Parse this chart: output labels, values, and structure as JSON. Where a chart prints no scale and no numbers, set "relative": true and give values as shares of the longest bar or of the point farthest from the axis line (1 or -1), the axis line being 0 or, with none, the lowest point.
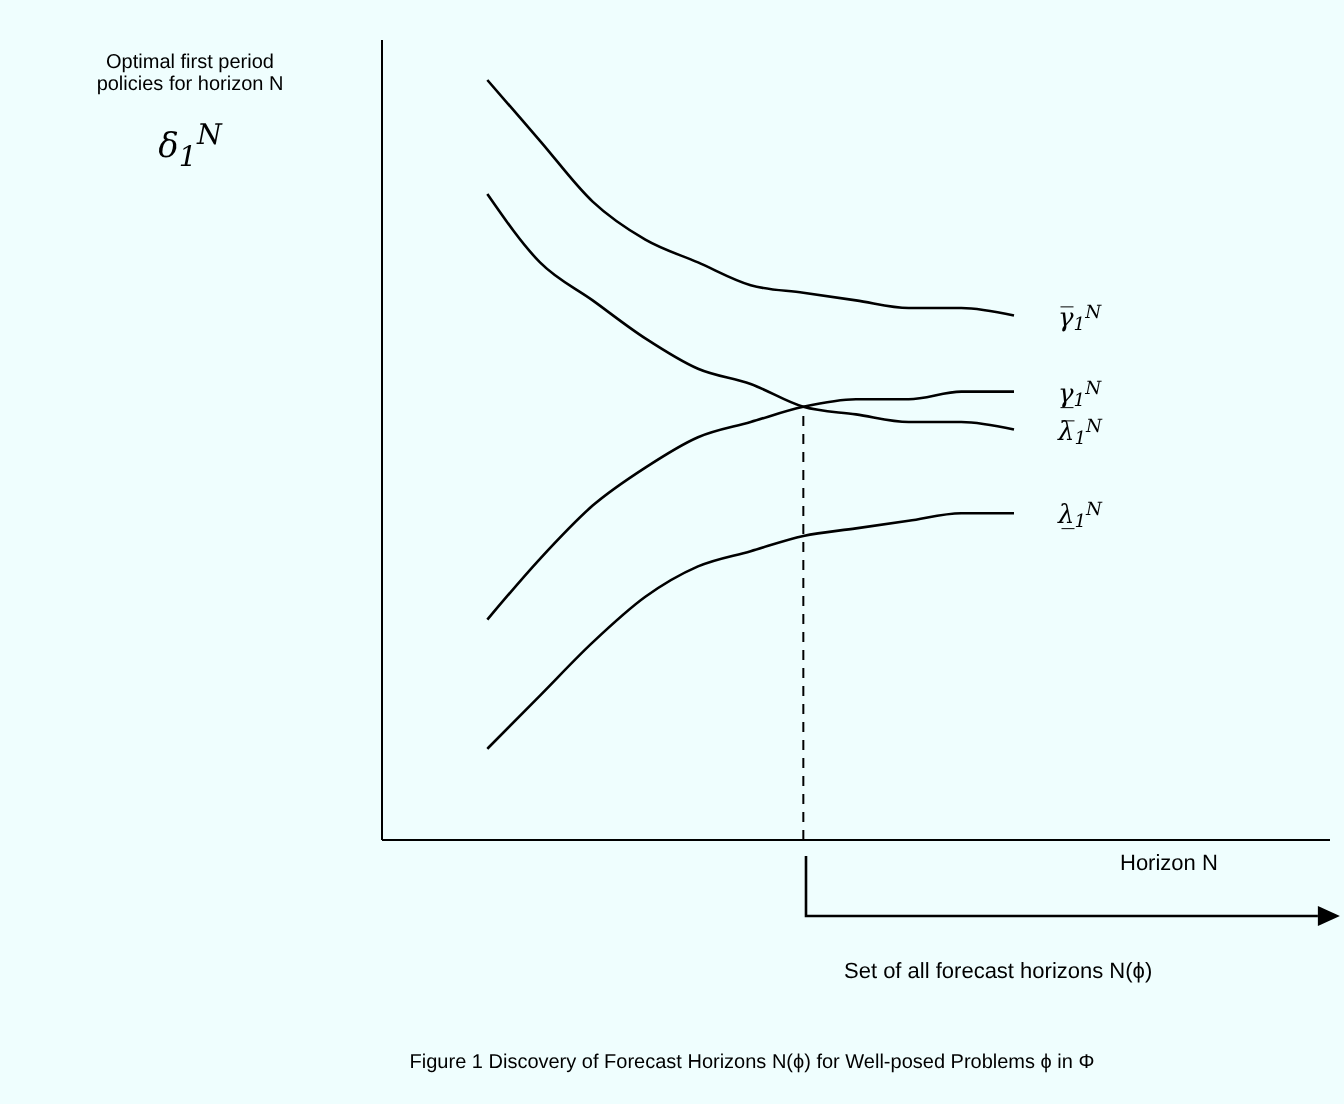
{
  "chart_data": {
    "type": "line",
    "relative": true,
    "title": "Figure 1 Discovery of Forecast Horizons N(ϕ) for Well-posed Problems ϕ in Φ",
    "xlabel": "Horizon N",
    "ylabel": "Optimal first period policies for horizon N",
    "annotations": [
      "δ$_{1}$$^{N}$",
      "Set of all forecast horizons N(ϕ)"
    ],
    "categories": [
      null,
      null,
      null,
      null,
      null,
      null,
      null,
      null,
      null,
      null,
      null,
      null,
      null,
      null,
      null,
      null,
      null,
      null,
      null
    ],
    "series": [
      {
        "name": "γ̅$_{1}$$^{N}$",
        "color": "#000000",
        "values": [
          null,
          null,
          1,
          0.92,
          0.84,
          0.79,
          0.76,
          0.73,
          0.72,
          0.71,
          0.7,
          0.7,
          0.69,
          null,
          null,
          null,
          null,
          null,
          null
        ]
      },
      {
        "name": "λ̅$_{1}$$^{N}$",
        "color": "#000000",
        "values": [
          null,
          null,
          0.85,
          0.76,
          0.71,
          0.66,
          0.62,
          0.6,
          0.57,
          0.56,
          0.55,
          0.55,
          0.54,
          null,
          null,
          null,
          null,
          null,
          null
        ]
      },
      {
        "name": "γ̲$_{1}$$^{N}$",
        "color": "#000000",
        "values": [
          null,
          null,
          0.29,
          0.37,
          0.44,
          0.49,
          0.53,
          0.55,
          0.57,
          0.58,
          0.58,
          0.59,
          0.59,
          null,
          null,
          null,
          null,
          null,
          null
        ]
      },
      {
        "name": "λ̲$_{1}$$^{N}$",
        "color": "#000000",
        "values": [
          null,
          null,
          0.12,
          0.19,
          0.26,
          0.32,
          0.36,
          0.38,
          0.4,
          0.41,
          0.42,
          0.43,
          0.43,
          null,
          null,
          null,
          null,
          null,
          null
        ]
      }
    ]
  }
}
